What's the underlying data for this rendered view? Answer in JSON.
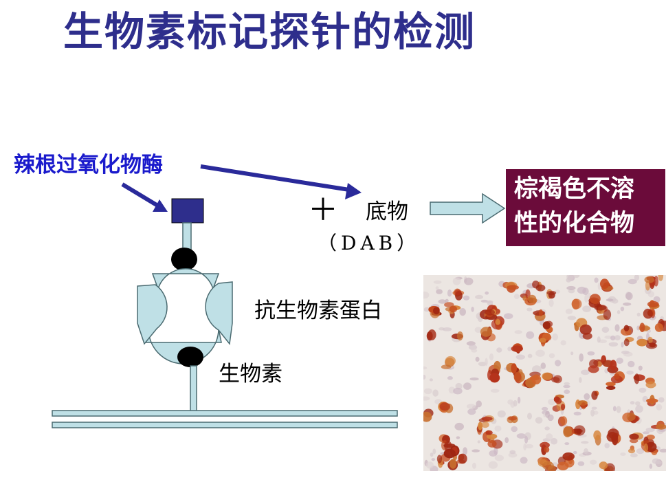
{
  "title": "生物素标记探针的检测",
  "labels": {
    "enzyme": "辣根过氧化物酶",
    "plus": "＋",
    "substrate": "底物",
    "dab": "（DAB）",
    "avidin": "抗生物素蛋白",
    "biotin": "生物素"
  },
  "product_box": {
    "line1": "棕褐色不溶",
    "line2": "性的化合物"
  },
  "colors": {
    "title": "#2e2e8c",
    "enzyme_label": "#1a1acc",
    "arrow": "#2a2a9a",
    "enzyme_square": "#2e2e8c",
    "protein_fill": "#bfe0e6",
    "protein_stroke": "#4a6a70",
    "product_box_bg": "#6b0b3a",
    "block_arrow_fill": "#bfe0e6"
  },
  "photo": {
    "description_icon": "stained-tissue-image"
  }
}
